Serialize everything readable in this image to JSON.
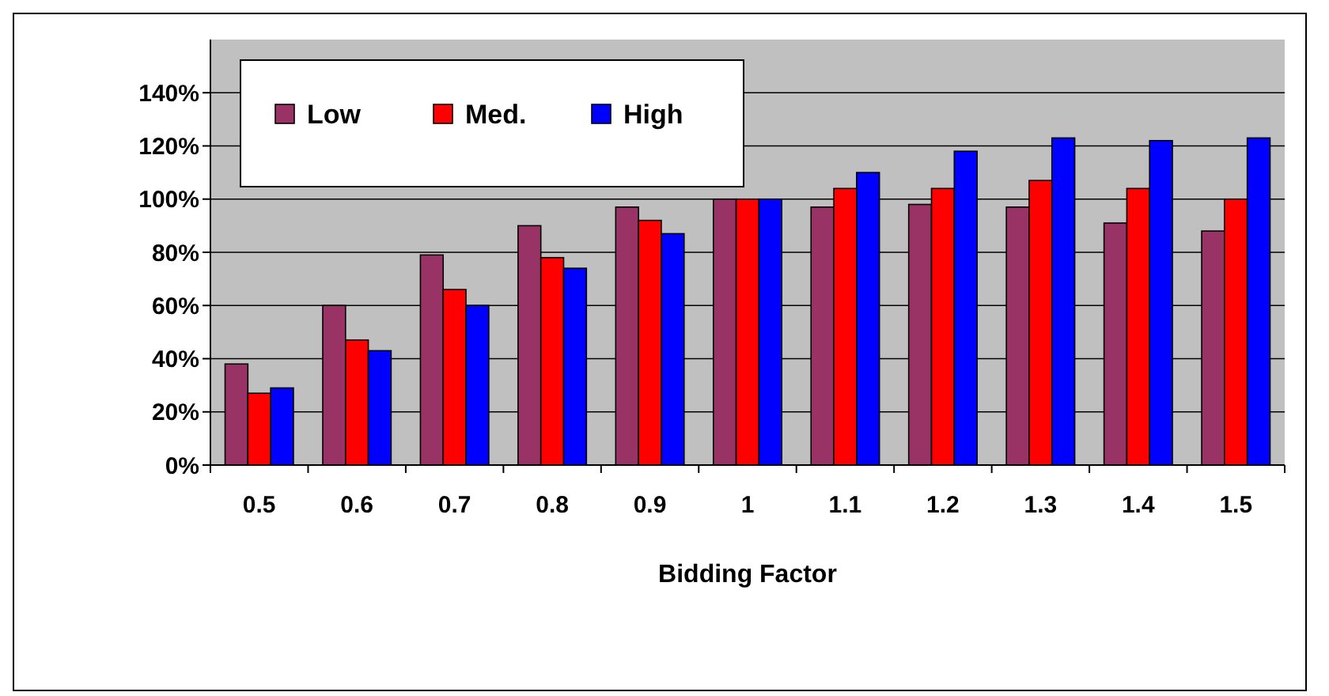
{
  "chart_data": {
    "type": "bar",
    "xlabel": "Bidding Factor",
    "categories": [
      "0.5",
      "0.6",
      "0.7",
      "0.8",
      "0.9",
      "1",
      "1.1",
      "1.2",
      "1.3",
      "1.4",
      "1.5"
    ],
    "series": [
      {
        "name": "Low",
        "color": "#993366",
        "values": [
          38,
          60,
          79,
          90,
          97,
          100,
          97,
          98,
          97,
          91,
          88
        ]
      },
      {
        "name": "Med.",
        "color": "#ff0000",
        "values": [
          27,
          47,
          66,
          78,
          92,
          100,
          104,
          104,
          107,
          104,
          100
        ]
      },
      {
        "name": "High",
        "color": "#0000ff",
        "values": [
          29,
          43,
          60,
          74,
          87,
          100,
          110,
          118,
          123,
          122,
          123
        ]
      }
    ],
    "ylim": [
      0,
      160
    ],
    "yticks": [
      {
        "value": 0,
        "label": "0%"
      },
      {
        "value": 20,
        "label": "20%"
      },
      {
        "value": 40,
        "label": "40%"
      },
      {
        "value": 60,
        "label": "60%"
      },
      {
        "value": 80,
        "label": "80%"
      },
      {
        "value": 100,
        "label": "100%"
      },
      {
        "value": 120,
        "label": "120%"
      },
      {
        "value": 140,
        "label": "140%"
      }
    ],
    "grid": "y",
    "legend": "top left"
  }
}
